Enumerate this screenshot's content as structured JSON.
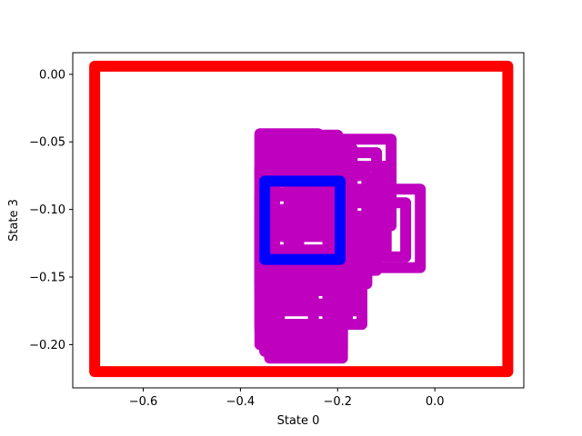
{
  "chart_data": {
    "type": "scatter",
    "title": "",
    "xlabel": "State 0",
    "ylabel": "State 3",
    "xlim": [
      -0.745,
      0.183
    ],
    "ylim": [
      -0.232,
      0.016
    ],
    "xticks": [
      -0.6,
      -0.4,
      -0.2,
      0.0
    ],
    "xtick_labels": [
      "−0.6",
      "−0.4",
      "−0.2",
      "0.0"
    ],
    "yticks": [
      0.0,
      -0.05,
      -0.1,
      -0.15,
      -0.2
    ],
    "ytick_labels": [
      "0.00",
      "−0.05",
      "−0.10",
      "−0.15",
      "−0.20"
    ],
    "grid": false,
    "colors": {
      "red": "#ff0000",
      "magenta": "#bf00bf",
      "blue": "#0000ff"
    },
    "series": [
      {
        "color": "red",
        "marker": "o",
        "paths": [
          {
            "closed": true,
            "points": [
              [
                -0.7,
                0.006
              ],
              [
                0.15,
                0.006
              ],
              [
                0.15,
                -0.22
              ],
              [
                -0.7,
                -0.22
              ]
            ]
          }
        ],
        "points": [
          [
            -0.625,
            0.006
          ],
          [
            -0.52,
            0.006
          ],
          [
            -0.45,
            0.006
          ],
          [
            -0.395,
            0.006
          ],
          [
            -0.35,
            0.006
          ],
          [
            -0.315,
            0.006
          ],
          [
            -0.285,
            0.006
          ],
          [
            -0.26,
            0.006
          ],
          [
            -0.24,
            0.006
          ],
          [
            -0.22,
            0.006
          ],
          [
            -0.205,
            0.006
          ],
          [
            -0.19,
            0.006
          ],
          [
            -0.178,
            0.006
          ],
          [
            -0.166,
            0.006
          ],
          [
            -0.155,
            0.006
          ],
          [
            -0.145,
            0.006
          ],
          [
            -0.135,
            0.006
          ],
          [
            -0.126,
            0.006
          ],
          [
            -0.117,
            0.006
          ],
          [
            -0.109,
            0.006
          ]
        ]
      },
      {
        "color": "magenta",
        "marker": "o",
        "paths": [
          {
            "closed": true,
            "points": [
              [
                -0.36,
                -0.045
              ],
              [
                -0.2,
                -0.045
              ],
              [
                -0.2,
                -0.2
              ],
              [
                -0.36,
                -0.2
              ]
            ]
          },
          {
            "closed": true,
            "points": [
              [
                -0.35,
                -0.05
              ],
              [
                -0.22,
                -0.05
              ],
              [
                -0.22,
                -0.205
              ],
              [
                -0.35,
                -0.205
              ]
            ]
          },
          {
            "closed": true,
            "points": [
              [
                -0.34,
                -0.06
              ],
              [
                -0.19,
                -0.06
              ],
              [
                -0.19,
                -0.21
              ],
              [
                -0.34,
                -0.21
              ]
            ]
          },
          {
            "closed": true,
            "points": [
              [
                -0.36,
                -0.07
              ],
              [
                -0.18,
                -0.07
              ],
              [
                -0.18,
                -0.185
              ],
              [
                -0.36,
                -0.185
              ]
            ]
          },
          {
            "closed": true,
            "points": [
              [
                -0.33,
                -0.08
              ],
              [
                -0.2,
                -0.08
              ],
              [
                -0.2,
                -0.195
              ],
              [
                -0.33,
                -0.195
              ]
            ]
          },
          {
            "closed": true,
            "points": [
              [
                -0.36,
                -0.09
              ],
              [
                -0.14,
                -0.09
              ],
              [
                -0.14,
                -0.155
              ],
              [
                -0.36,
                -0.155
              ]
            ]
          },
          {
            "closed": true,
            "points": [
              [
                -0.35,
                -0.1
              ],
              [
                -0.17,
                -0.1
              ],
              [
                -0.17,
                -0.17
              ],
              [
                -0.35,
                -0.17
              ]
            ]
          },
          {
            "closed": true,
            "points": [
              [
                -0.34,
                -0.11
              ],
              [
                -0.15,
                -0.11
              ],
              [
                -0.15,
                -0.185
              ],
              [
                -0.34,
                -0.185
              ]
            ]
          },
          {
            "closed": true,
            "points": [
              [
                -0.36,
                -0.12
              ],
              [
                -0.18,
                -0.12
              ],
              [
                -0.18,
                -0.16
              ],
              [
                -0.36,
                -0.16
              ]
            ]
          },
          {
            "closed": true,
            "points": [
              [
                -0.35,
                -0.048
              ],
              [
                -0.09,
                -0.048
              ],
              [
                -0.09,
                -0.112
              ],
              [
                -0.35,
                -0.112
              ]
            ]
          },
          {
            "closed": true,
            "points": [
              [
                -0.33,
                -0.058
              ],
              [
                -0.12,
                -0.058
              ],
              [
                -0.12,
                -0.14
              ],
              [
                -0.33,
                -0.14
              ]
            ]
          },
          {
            "closed": true,
            "points": [
              [
                -0.36,
                -0.068
              ],
              [
                -0.1,
                -0.068
              ],
              [
                -0.1,
                -0.13
              ],
              [
                -0.36,
                -0.13
              ]
            ]
          },
          {
            "closed": true,
            "points": [
              [
                -0.34,
                -0.075
              ],
              [
                -0.14,
                -0.075
              ],
              [
                -0.14,
                -0.15
              ],
              [
                -0.34,
                -0.15
              ]
            ]
          },
          {
            "closed": true,
            "points": [
              [
                -0.3,
                -0.085
              ],
              [
                -0.03,
                -0.085
              ],
              [
                -0.03,
                -0.143
              ],
              [
                -0.3,
                -0.143
              ]
            ]
          },
          {
            "closed": true,
            "points": [
              [
                -0.28,
                -0.095
              ],
              [
                -0.06,
                -0.095
              ],
              [
                -0.06,
                -0.135
              ],
              [
                -0.28,
                -0.135
              ]
            ]
          },
          {
            "closed": true,
            "points": [
              [
                -0.36,
                -0.105
              ],
              [
                -0.12,
                -0.105
              ],
              [
                -0.12,
                -0.145
              ],
              [
                -0.36,
                -0.145
              ]
            ]
          },
          {
            "closed": true,
            "points": [
              [
                -0.35,
                -0.055
              ],
              [
                -0.17,
                -0.055
              ],
              [
                -0.17,
                -0.088
              ],
              [
                -0.35,
                -0.088
              ]
            ]
          },
          {
            "closed": true,
            "points": [
              [
                -0.33,
                -0.13
              ],
              [
                -0.16,
                -0.13
              ],
              [
                -0.16,
                -0.175
              ],
              [
                -0.33,
                -0.175
              ]
            ]
          },
          {
            "closed": true,
            "points": [
              [
                -0.36,
                -0.14
              ],
              [
                -0.19,
                -0.14
              ],
              [
                -0.19,
                -0.19
              ],
              [
                -0.36,
                -0.19
              ]
            ]
          },
          {
            "closed": true,
            "points": [
              [
                -0.32,
                -0.15
              ],
              [
                -0.19,
                -0.15
              ],
              [
                -0.19,
                -0.203
              ],
              [
                -0.32,
                -0.203
              ]
            ]
          },
          {
            "closed": true,
            "points": [
              [
                -0.35,
                -0.16
              ],
              [
                -0.22,
                -0.16
              ],
              [
                -0.22,
                -0.198
              ],
              [
                -0.35,
                -0.198
              ]
            ]
          },
          {
            "closed": true,
            "points": [
              [
                -0.34,
                -0.165
              ],
              [
                -0.25,
                -0.165
              ],
              [
                -0.25,
                -0.19
              ],
              [
                -0.34,
                -0.19
              ]
            ]
          },
          {
            "closed": true,
            "points": [
              [
                -0.36,
                -0.044
              ],
              [
                -0.24,
                -0.044
              ],
              [
                -0.24,
                -0.076
              ],
              [
                -0.36,
                -0.076
              ]
            ]
          }
        ],
        "points": []
      },
      {
        "color": "blue",
        "marker": "o",
        "paths": [
          {
            "closed": true,
            "points": [
              [
                -0.35,
                -0.079
              ],
              [
                -0.195,
                -0.079
              ],
              [
                -0.195,
                -0.137
              ],
              [
                -0.35,
                -0.137
              ]
            ]
          }
        ],
        "points": []
      }
    ]
  }
}
